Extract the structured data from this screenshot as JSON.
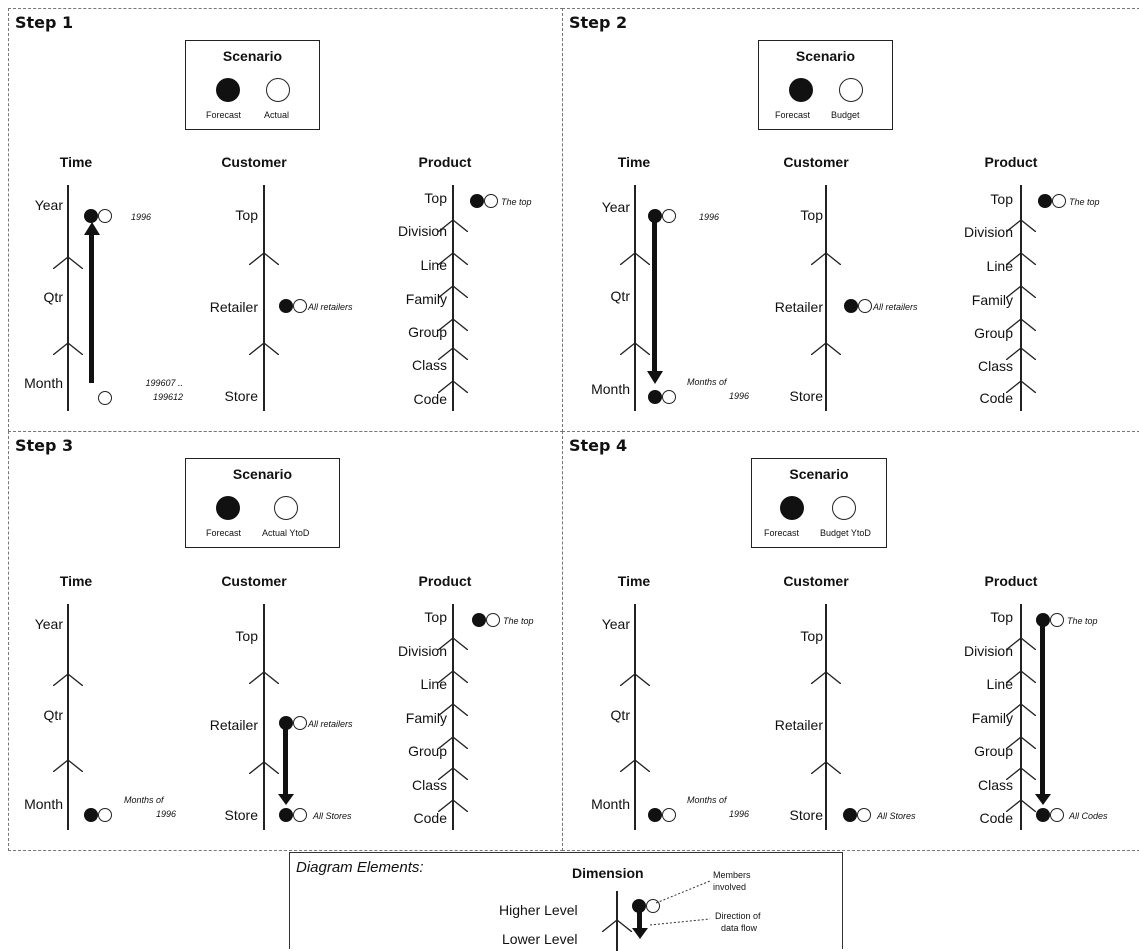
{
  "steps": [
    {
      "title": "Step 1",
      "scenario": {
        "title": "Scenario",
        "filled_label": "Forecast",
        "empty_label": "Actual"
      },
      "time": {
        "title": "Time",
        "levels": [
          "Year",
          "Qtr",
          "Month"
        ],
        "notes": [
          "1996",
          "199607 ..",
          "199612"
        ]
      },
      "customer": {
        "title": "Customer",
        "levels": [
          "Top",
          "Retailer",
          "Store"
        ],
        "notes": [
          "All retailers"
        ]
      },
      "product": {
        "title": "Product",
        "levels": [
          "Top",
          "Division",
          "Line",
          "Family",
          "Group",
          "Class",
          "Code"
        ],
        "notes": [
          "The top"
        ]
      }
    },
    {
      "title": "Step 2",
      "scenario": {
        "title": "Scenario",
        "filled_label": "Forecast",
        "empty_label": "Budget"
      },
      "time": {
        "title": "Time",
        "levels": [
          "Year",
          "Qtr",
          "Month"
        ],
        "notes": [
          "1996",
          "Months of",
          "1996"
        ]
      },
      "customer": {
        "title": "Customer",
        "levels": [
          "Top",
          "Retailer",
          "Store"
        ],
        "notes": [
          "All retailers"
        ]
      },
      "product": {
        "title": "Product",
        "levels": [
          "Top",
          "Division",
          "Line",
          "Family",
          "Group",
          "Class",
          "Code"
        ],
        "notes": [
          "The top"
        ]
      }
    },
    {
      "title": "Step 3",
      "scenario": {
        "title": "Scenario",
        "filled_label": "Forecast",
        "empty_label": "Actual YtoD"
      },
      "time": {
        "title": "Time",
        "levels": [
          "Year",
          "Qtr",
          "Month"
        ],
        "notes": [
          "Months of",
          "1996"
        ]
      },
      "customer": {
        "title": "Customer",
        "levels": [
          "Top",
          "Retailer",
          "Store"
        ],
        "notes": [
          "All retailers",
          "All Stores"
        ]
      },
      "product": {
        "title": "Product",
        "levels": [
          "Top",
          "Division",
          "Line",
          "Family",
          "Group",
          "Class",
          "Code"
        ],
        "notes": [
          "The top"
        ]
      }
    },
    {
      "title": "Step 4",
      "scenario": {
        "title": "Scenario",
        "filled_label": "Forecast",
        "empty_label": "Budget YtoD"
      },
      "time": {
        "title": "Time",
        "levels": [
          "Year",
          "Qtr",
          "Month"
        ],
        "notes": [
          "Months of",
          "1996"
        ]
      },
      "customer": {
        "title": "Customer",
        "levels": [
          "Top",
          "Retailer",
          "Store"
        ],
        "notes": [
          "All Stores"
        ]
      },
      "product": {
        "title": "Product",
        "levels": [
          "Top",
          "Division",
          "Line",
          "Family",
          "Group",
          "Class",
          "Code"
        ],
        "notes": [
          "The top",
          "All Codes"
        ]
      }
    }
  ],
  "legend": {
    "title": "Diagram Elements:",
    "dimension_label": "Dimension",
    "higher_level": "Higher Level",
    "lower_level": "Lower Level",
    "members_note_1": "Members",
    "members_note_2": "involved",
    "flow_note_1": "Direction of",
    "flow_note_2": "data flow"
  },
  "colors": {
    "ink": "#111111",
    "border": "#777777",
    "background": "#ffffff"
  }
}
